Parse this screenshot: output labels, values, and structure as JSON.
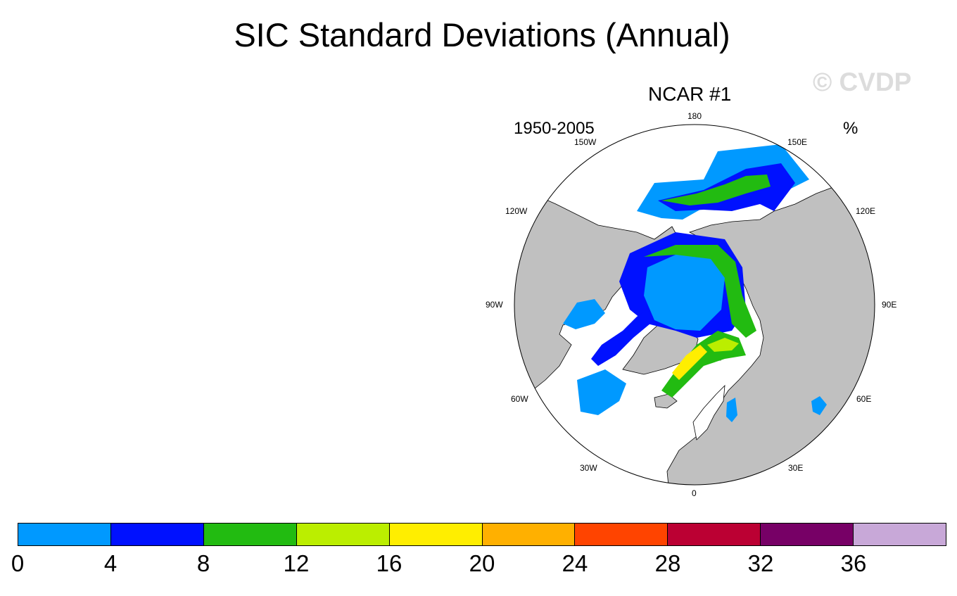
{
  "title": "SIC Standard Deviations (Annual)",
  "watermark": "© CVDP",
  "panel": {
    "title": "NCAR #1",
    "period": "1950-2005",
    "units": "%"
  },
  "map": {
    "projection": "north-polar-stereographic",
    "lon_labels": [
      "180",
      "150E",
      "120E",
      "90E",
      "60E",
      "30E",
      "0",
      "30W",
      "60W",
      "90W",
      "120W",
      "150W"
    ],
    "colors": {
      "land": "#c0c0c0",
      "ocean": "#ffffff",
      "coastline": "#000000"
    }
  },
  "colorbar": {
    "colors": [
      "#0099ff",
      "#0011ff",
      "#22bb11",
      "#bbee00",
      "#ffee00",
      "#ffb000",
      "#ff4400",
      "#bb0033",
      "#770066",
      "#c8a8d8"
    ],
    "labels": [
      "0",
      "4",
      "8",
      "12",
      "16",
      "20",
      "24",
      "28",
      "32",
      "36"
    ]
  }
}
